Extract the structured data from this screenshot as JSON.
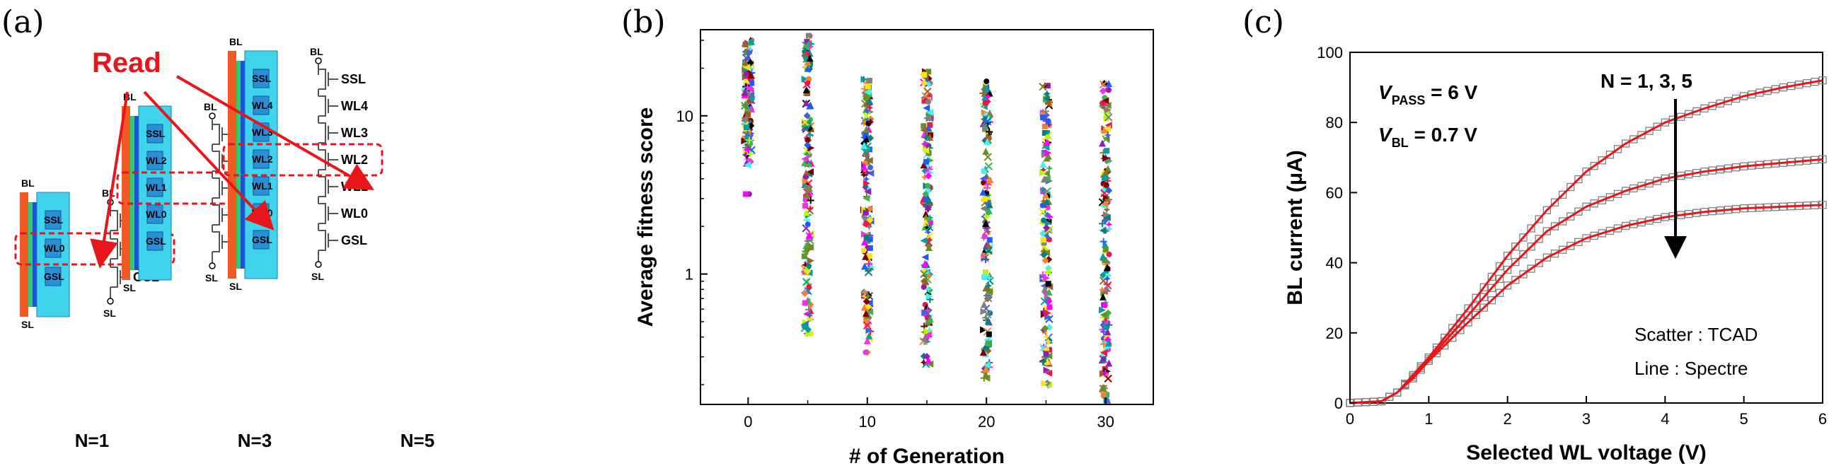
{
  "panels": {
    "a": {
      "label": "(a)",
      "read_label": "Read",
      "bl": "BL",
      "sl": "SL",
      "strings": [
        {
          "caption": "N=1",
          "lines": [
            "SSL",
            "WL0",
            "GSL"
          ],
          "read_line": "WL0"
        },
        {
          "caption": "N=3",
          "lines": [
            "SSL",
            "WL2",
            "WL1",
            "WL0",
            "GSL"
          ],
          "read_line": "WL1"
        },
        {
          "caption": "N=5",
          "lines": [
            "SSL",
            "WL4",
            "WL3",
            "WL2",
            "WL1",
            "WL0",
            "GSL"
          ],
          "read_line": "WL2"
        }
      ]
    },
    "b": {
      "label": "(b)"
    },
    "c": {
      "label": "(c)",
      "vpass_main": "V",
      "vpass_sub": "PASS",
      "vpass_value": " = 6 V",
      "vbl_main": "V",
      "vbl_sub": "BL",
      "vbl_value": " = 0.7 V",
      "n_annotation": "N = 1, 3, 5",
      "legend_scatter": "Scatter : TCAD",
      "legend_line": "Line : Spectre"
    }
  },
  "chart_data": [
    {
      "type": "scatter",
      "xlabel": "# of Generation",
      "ylabel": "Average fitness score",
      "yscale": "log",
      "xlim": [
        -4,
        34
      ],
      "ylim": [
        0.15,
        35
      ],
      "xticks": [
        0,
        10,
        20,
        30
      ],
      "yticks": [
        1,
        10
      ],
      "xminor": [
        5,
        15,
        25
      ],
      "columns": [
        {
          "x": 0,
          "min": 3.2,
          "max": 30,
          "bulk_min": 4.8
        },
        {
          "x": 5,
          "min": 0.42,
          "max": 32
        },
        {
          "x": 10,
          "min": 0.32,
          "max": 17
        },
        {
          "x": 15,
          "min": 0.27,
          "max": 19
        },
        {
          "x": 20,
          "min": 0.22,
          "max": 16.5
        },
        {
          "x": 25,
          "min": 0.2,
          "max": 15.5
        },
        {
          "x": 30,
          "min": 0.16,
          "max": 16
        }
      ],
      "palette": [
        "#e6194b",
        "#3cb44b",
        "#ffe119",
        "#4363d8",
        "#f58231",
        "#911eb4",
        "#46f0f0",
        "#f032e6",
        "#bcf60c",
        "#008080",
        "#9a6324",
        "#000000",
        "#808080",
        "#800000",
        "#1f5cff",
        "#ff00ff",
        "#00a0a0",
        "#6b8e23"
      ]
    },
    {
      "type": "line",
      "xlabel": "Selected WL voltage (V)",
      "ylabel": "BL current (μA)",
      "xlim": [
        0,
        6
      ],
      "ylim": [
        0,
        100
      ],
      "xticks": [
        0,
        1,
        2,
        3,
        4,
        5,
        6
      ],
      "yticks": [
        0,
        20,
        40,
        60,
        80,
        100
      ],
      "series": [
        {
          "x": [
            0,
            0.4,
            0.6,
            0.8,
            1.0,
            1.5,
            2.0,
            2.5,
            3.0,
            3.5,
            4.0,
            4.5,
            5.0,
            5.5,
            6.0
          ],
          "values": [
            0,
            0.5,
            3,
            8,
            13,
            27,
            42,
            55,
            66,
            74,
            80,
            84,
            87.5,
            90,
            92
          ]
        },
        {
          "x": [
            0,
            0.4,
            0.6,
            0.8,
            1.0,
            1.5,
            2.0,
            2.5,
            3.0,
            3.5,
            4.0,
            4.5,
            5.0,
            5.5,
            6.0
          ],
          "values": [
            0,
            0.5,
            3,
            7.5,
            12.5,
            25,
            38,
            49,
            56,
            60.5,
            64,
            66,
            67.5,
            68.5,
            69.5
          ]
        },
        {
          "x": [
            0,
            0.4,
            0.6,
            0.8,
            1.0,
            1.5,
            2.0,
            2.5,
            3.0,
            3.5,
            4.0,
            4.5,
            5.0,
            5.5,
            6.0
          ],
          "values": [
            0,
            0.5,
            3,
            7,
            12,
            23,
            33.5,
            41.5,
            47,
            50.5,
            53,
            54.5,
            55.5,
            56,
            56.5
          ]
        }
      ],
      "colors": {
        "line": "#e8161b",
        "marker": "#808080",
        "arrow": "#000000"
      }
    }
  ]
}
